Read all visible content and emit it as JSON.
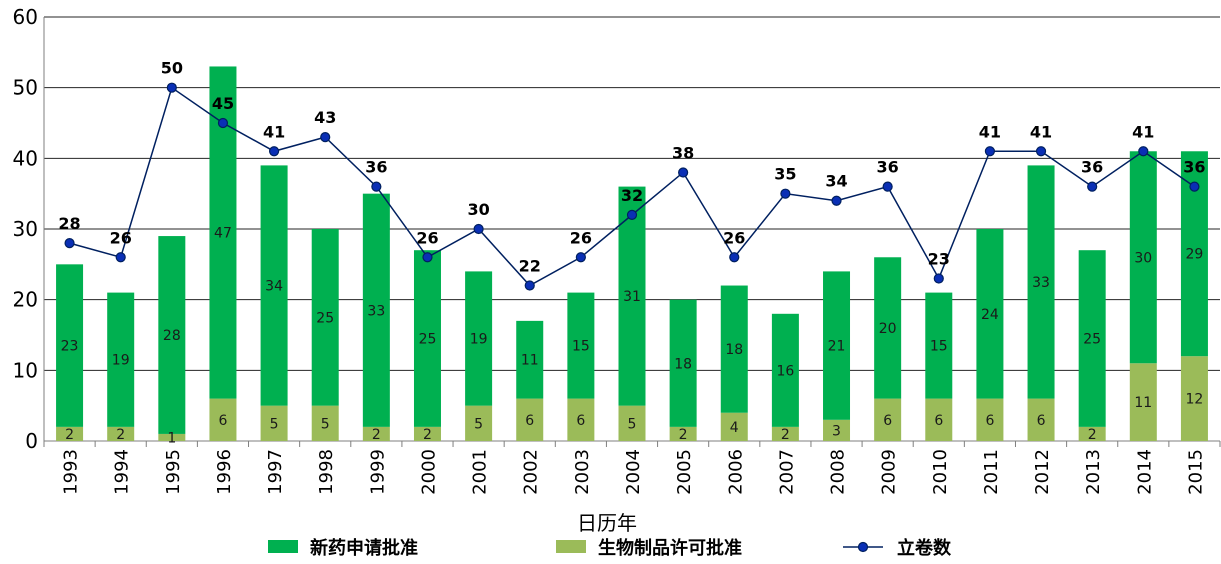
{
  "chart_data": {
    "type": "bar",
    "stacked": true,
    "title": "",
    "xlabel": "日历年",
    "ylabel": "",
    "ylim": [
      0,
      60
    ],
    "yticks": [
      0,
      10,
      20,
      30,
      40,
      50,
      60
    ],
    "grid": true,
    "legend_position": "bottom",
    "categories": [
      "1993",
      "1994",
      "1995",
      "1996",
      "1997",
      "1998",
      "1999",
      "2000",
      "2001",
      "2002",
      "2003",
      "2004",
      "2005",
      "2006",
      "2007",
      "2008",
      "2009",
      "2010",
      "2011",
      "2012",
      "2013",
      "2014",
      "2015"
    ],
    "series": [
      {
        "name": "生物制品许可批准",
        "kind": "bar",
        "color": "#9bbb59",
        "values": [
          2,
          2,
          1,
          6,
          5,
          5,
          2,
          2,
          5,
          6,
          6,
          5,
          2,
          4,
          2,
          3,
          6,
          6,
          6,
          6,
          2,
          11,
          12
        ]
      },
      {
        "name": "新药申请批准",
        "kind": "bar",
        "color": "#00b050",
        "values": [
          23,
          19,
          28,
          47,
          34,
          25,
          33,
          25,
          19,
          11,
          15,
          31,
          18,
          18,
          16,
          21,
          20,
          15,
          24,
          33,
          25,
          30,
          29
        ]
      },
      {
        "name": "立卷数",
        "kind": "line",
        "color": "#002060",
        "values": [
          28,
          26,
          50,
          45,
          41,
          43,
          36,
          26,
          30,
          22,
          26,
          32,
          38,
          26,
          35,
          34,
          36,
          23,
          41,
          41,
          36,
          41,
          36
        ]
      }
    ]
  }
}
